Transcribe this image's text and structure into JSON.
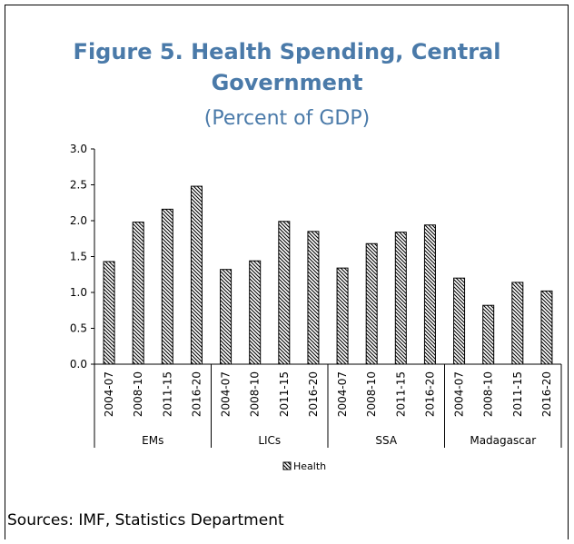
{
  "chart_data": {
    "type": "bar",
    "title_line1": "Figure 5. Health Spending, Central",
    "title_line2": "Government",
    "subtitle": "(Percent of GDP)",
    "groups": [
      {
        "name": "EMs",
        "categories": [
          "2004-07",
          "2008-10",
          "2011-15",
          "2016-20"
        ],
        "values": [
          1.43,
          1.98,
          2.16,
          2.48
        ]
      },
      {
        "name": "LICs",
        "categories": [
          "2004-07",
          "2008-10",
          "2011-15",
          "2016-20"
        ],
        "values": [
          1.32,
          1.44,
          1.99,
          1.85
        ]
      },
      {
        "name": "SSA",
        "categories": [
          "2004-07",
          "2008-10",
          "2011-15",
          "2016-20"
        ],
        "values": [
          1.34,
          1.68,
          1.84,
          1.94
        ]
      },
      {
        "name": "Madagascar",
        "categories": [
          "2004-07",
          "2008-10",
          "2011-15",
          "2016-20"
        ],
        "values": [
          1.2,
          0.82,
          1.14,
          1.02
        ]
      }
    ],
    "series": [
      {
        "name": "Health"
      }
    ],
    "yticks": [
      "0.0",
      "0.5",
      "1.0",
      "1.5",
      "2.0",
      "2.5",
      "3.0"
    ],
    "ylim": [
      0,
      3.0
    ],
    "legend_position": "bottom",
    "grid": false
  },
  "source": "Sources: IMF, Statistics Department"
}
